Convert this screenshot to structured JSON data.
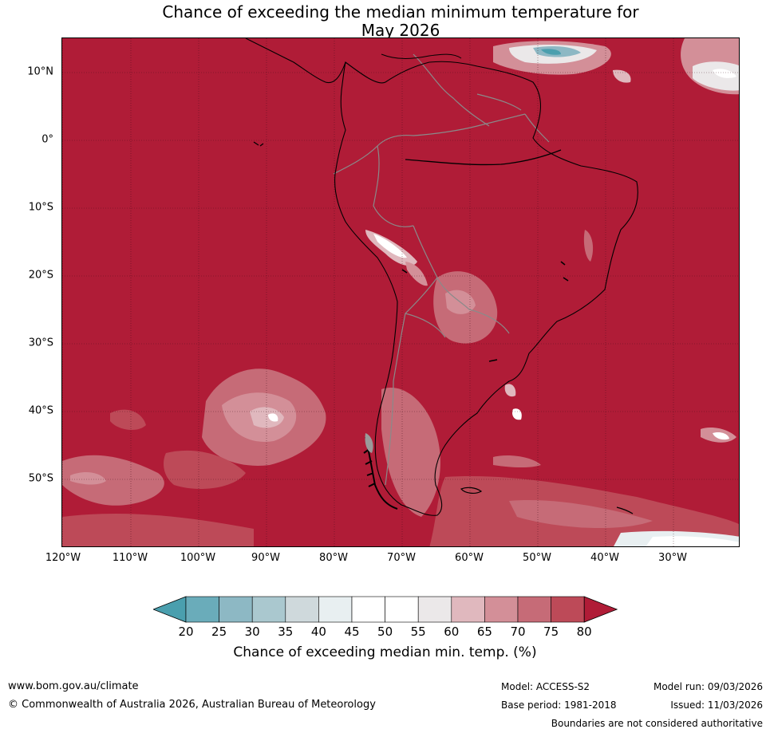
{
  "title_line1": "Chance of exceeding the median minimum temperature for",
  "title_line2": "May 2026",
  "lat_labels": [
    "10°N",
    "0°",
    "10°S",
    "20°S",
    "30°S",
    "40°S",
    "50°S"
  ],
  "lon_labels": [
    "120°W",
    "110°W",
    "100°W",
    "90°W",
    "80°W",
    "70°W",
    "60°W",
    "50°W",
    "40°W",
    "30°W"
  ],
  "colorbar": {
    "ticks": [
      "20",
      "25",
      "30",
      "35",
      "40",
      "45",
      "50",
      "55",
      "60",
      "65",
      "70",
      "75",
      "80"
    ],
    "colors": [
      "#4a9fae",
      "#6aacba",
      "#8db8c4",
      "#aac8cf",
      "#cfd9dc",
      "#e8eff1",
      "#ffffff",
      "#ffffff",
      "#ebe8e9",
      "#e0b8be",
      "#d38f98",
      "#c66b77",
      "#bd4a58",
      "#b01c37"
    ],
    "label": "Chance of exceeding median min. temp. (%)"
  },
  "footer": {
    "url": "www.bom.gov.au/climate",
    "copyright": "© Commonwealth of Australia 2026, Australian Bureau of Meteorology",
    "model": "Model: ACCESS-S2",
    "base_period": "Base period: 1981-2018",
    "model_run": "Model run: 09/03/2026",
    "issued": "Issued: 11/03/2026",
    "disclaimer": "Boundaries are not considered authoritative"
  }
}
